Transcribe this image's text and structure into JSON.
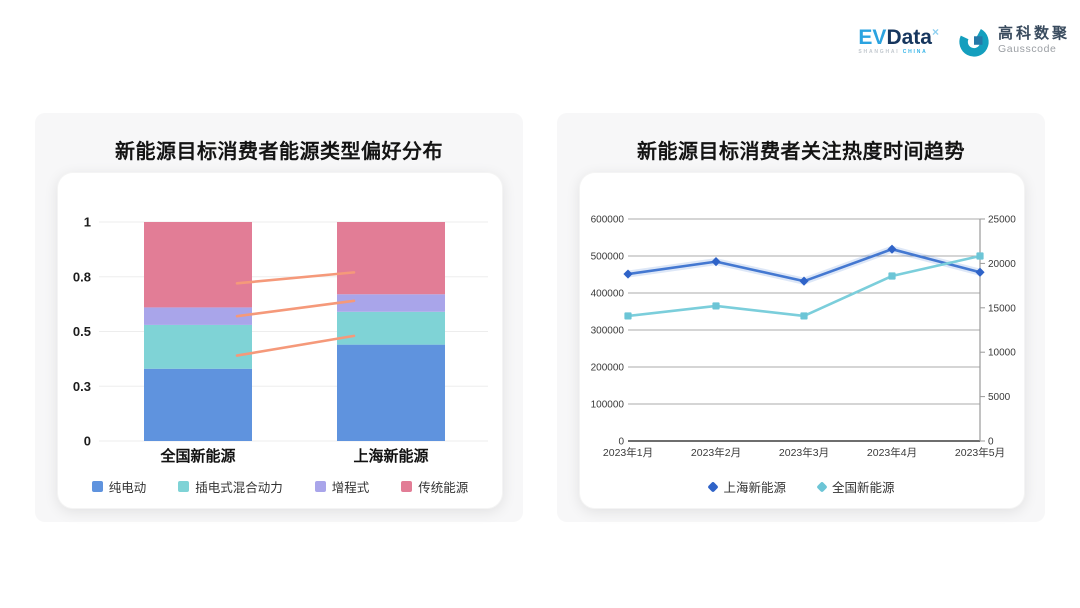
{
  "logo": {
    "evdata_ev": "EV",
    "evdata_data": "Data",
    "evdata_sup": "×",
    "evdata_sub_1": "SHANGHAI",
    "evdata_sub_2": "CHINA",
    "gausscode_cn": "高科数聚",
    "gausscode_en": "Gausscode",
    "colors": {
      "ev": "#2ba3e0",
      "data": "#16365e",
      "icon_arc": "#149fbe",
      "icon_square": "#2579a8"
    }
  },
  "chart_data": [
    {
      "type": "bar",
      "stacked": true,
      "title": "新能源目标消费者能源类型偏好分布",
      "categories": [
        "全国新能源",
        "上海新能源"
      ],
      "series": [
        {
          "name": "纯电动",
          "color": "#5f93de",
          "values": [
            0.33,
            0.44
          ]
        },
        {
          "name": "插电式混合动力",
          "color": "#7fd3d6",
          "values": [
            0.2,
            0.15
          ]
        },
        {
          "name": "增程式",
          "color": "#a9a5ea",
          "values": [
            0.08,
            0.08
          ]
        },
        {
          "name": "传统能源",
          "color": "#e27d96",
          "values": [
            0.39,
            0.33
          ]
        }
      ],
      "ylim": [
        0,
        1
      ],
      "yticks": [
        {
          "v": 0,
          "label": "0"
        },
        {
          "v": 0.25,
          "label": "0.3"
        },
        {
          "v": 0.5,
          "label": "0.5"
        },
        {
          "v": 0.75,
          "label": "0.8"
        },
        {
          "v": 1,
          "label": "1"
        }
      ],
      "grid": true,
      "grid_color": "#ededed",
      "connectors": {
        "color": "#f5997a",
        "lines": [
          {
            "v1": 0.72,
            "v2": 0.77
          },
          {
            "v1": 0.57,
            "v2": 0.64
          },
          {
            "v1": 0.39,
            "v2": 0.48
          }
        ]
      },
      "legend_position": "bottom"
    },
    {
      "type": "line",
      "title": "新能源目标消费者关注热度时间趋势",
      "x": [
        "2023年1月",
        "2023年2月",
        "2023年3月",
        "2023年4月",
        "2023年5月"
      ],
      "series": [
        {
          "name": "上海新能源",
          "axis": "right",
          "marker": "diamond",
          "color": "#4478d1",
          "marker_color": "#2f63c8",
          "values": [
            18800,
            20200,
            18000,
            21600,
            19000
          ]
        },
        {
          "name": "全国新能源",
          "axis": "left",
          "marker": "square",
          "color": "#7bcedb",
          "marker_color": "#6cc5d6",
          "values": [
            338000,
            365000,
            338000,
            446000,
            500000
          ]
        }
      ],
      "left_axis": {
        "min": 0,
        "max": 600000,
        "ticks": [
          0,
          100000,
          200000,
          300000,
          400000,
          500000,
          600000
        ]
      },
      "right_axis": {
        "min": 0,
        "max": 25000,
        "ticks": [
          0,
          5000,
          10000,
          15000,
          20000,
          25000
        ]
      },
      "grid": true,
      "grid_color": "#ababab",
      "zero_line_color": "#3f3f3f",
      "axis_line_color": "#9a9a9a",
      "legend_position": "bottom"
    }
  ]
}
